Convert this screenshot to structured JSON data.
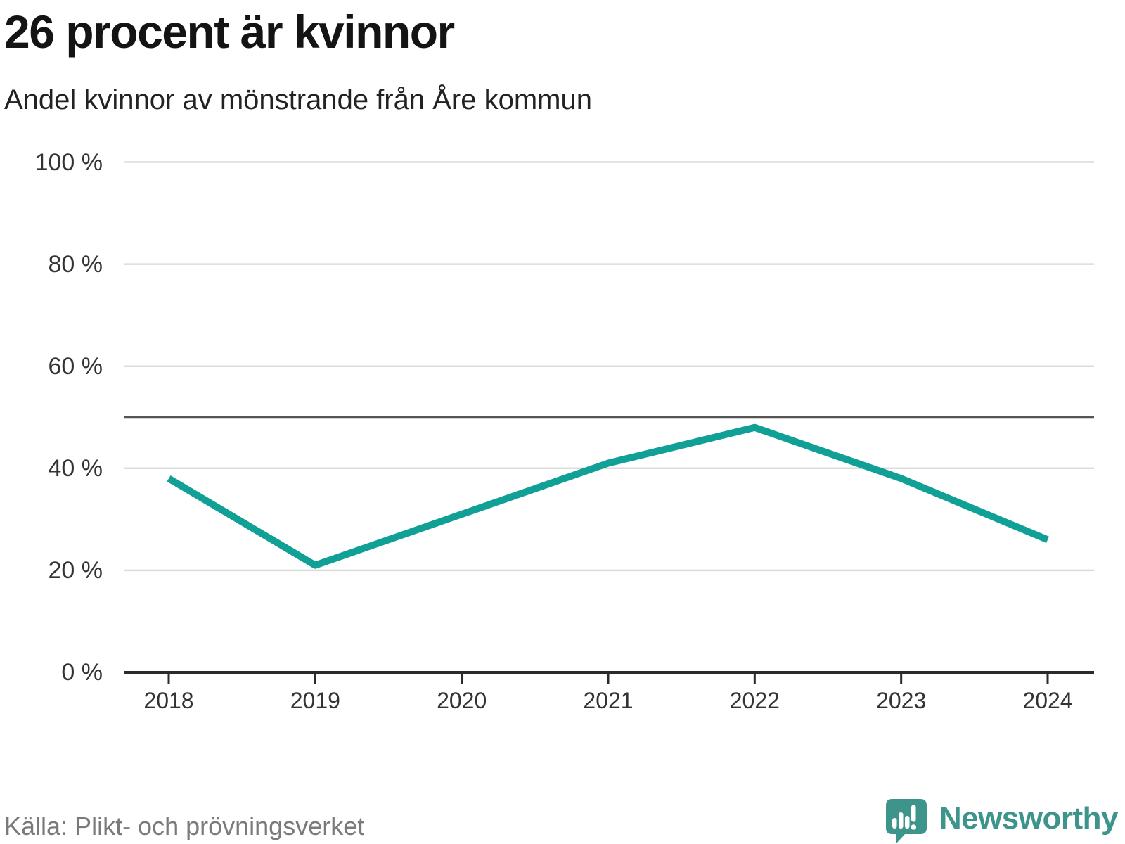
{
  "chart_data": {
    "type": "line",
    "title": "26 procent är kvinnor",
    "subtitle": "Andel kvinnor av mönstrande från Åre kommun",
    "categories": [
      "2018",
      "2019",
      "2020",
      "2021",
      "2022",
      "2023",
      "2024"
    ],
    "values": [
      38,
      21,
      31,
      41,
      48,
      38,
      26
    ],
    "unit": "%",
    "ylim": [
      0,
      100
    ],
    "y_ticks": [
      {
        "value": 100,
        "label": "100 %"
      },
      {
        "value": 80,
        "label": "80 %"
      },
      {
        "value": 60,
        "label": "60 %"
      },
      {
        "value": 40,
        "label": "40 %"
      },
      {
        "value": 20,
        "label": "20 %"
      },
      {
        "value": 0,
        "label": "0 %"
      }
    ],
    "reference_line": 50,
    "grid": true,
    "legend": "none",
    "line_color": "#10a096",
    "source": "Källa: Plikt- och prövningsverket"
  },
  "footer": {
    "brand_name": "Newsworthy",
    "brand_color": "#3c948b"
  },
  "colors": {
    "accent_line": "#10a096",
    "brand_teal": "#3c948b",
    "gridline": "#dcdcdc",
    "reference_line": "#555555",
    "axis": "#2b2b2b",
    "text_dark": "#141414",
    "text_muted": "#7a7a7a"
  }
}
